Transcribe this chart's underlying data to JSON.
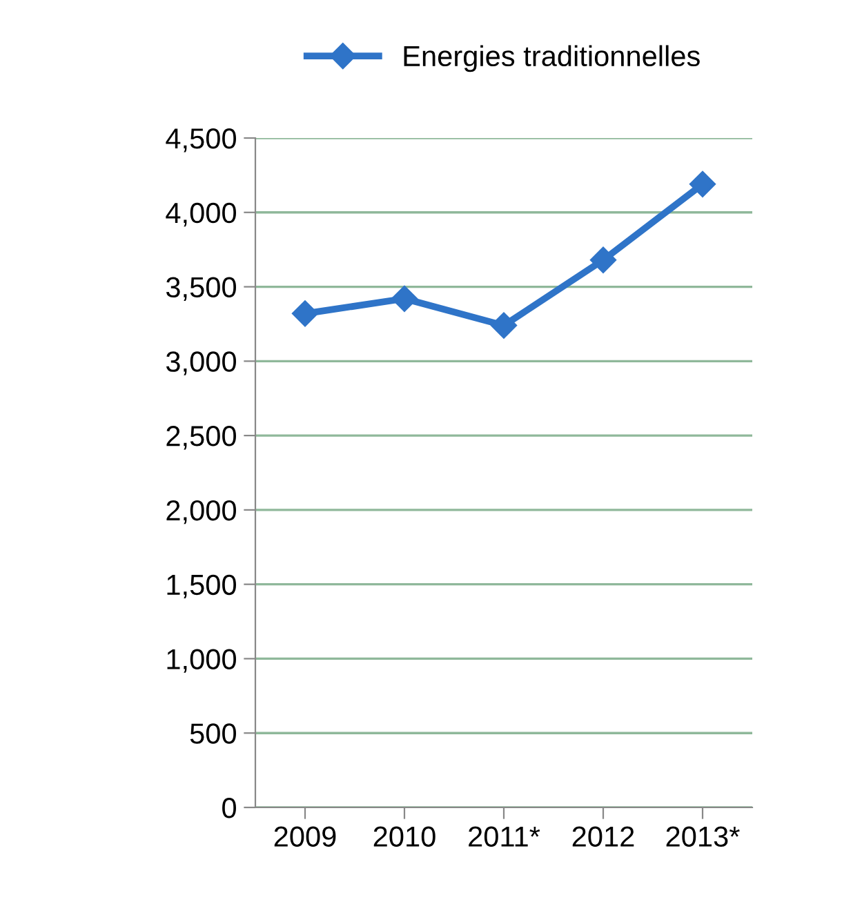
{
  "chart_data": {
    "type": "line",
    "categories": [
      "2009",
      "2010",
      "2011*",
      "2012",
      "2013*"
    ],
    "series": [
      {
        "name": "Energies traditionnelles",
        "color": "#2f74c8",
        "values": [
          3320,
          3420,
          3240,
          3680,
          4190
        ]
      }
    ],
    "ylim": [
      0,
      4500
    ],
    "yticks": [
      {
        "value": 0,
        "label": "0"
      },
      {
        "value": 500,
        "label": "500"
      },
      {
        "value": 1000,
        "label": "1,000"
      },
      {
        "value": 1500,
        "label": "1,500"
      },
      {
        "value": 2000,
        "label": "2,000"
      },
      {
        "value": 2500,
        "label": "2,500"
      },
      {
        "value": 3000,
        "label": "3,000"
      },
      {
        "value": 3500,
        "label": "3,500"
      },
      {
        "value": 4000,
        "label": "4,000"
      },
      {
        "value": 4500,
        "label": "4,500"
      }
    ],
    "grid": "y",
    "legend": "top",
    "marker": "diamond",
    "line_style": "solid"
  }
}
